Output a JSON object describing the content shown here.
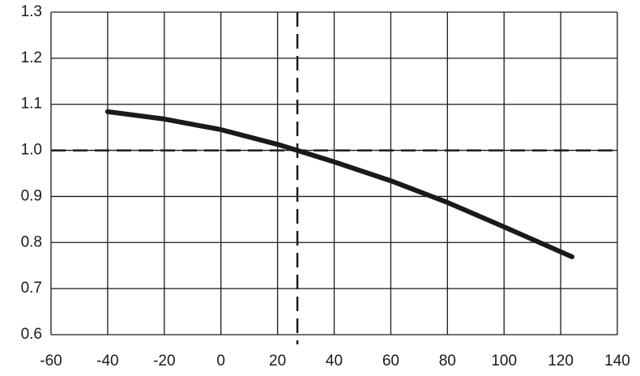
{
  "chart_data": {
    "type": "line",
    "x": [
      -40,
      -20,
      0,
      20,
      27,
      40,
      60,
      80,
      100,
      124
    ],
    "series": [
      {
        "color": "#1a1a1a",
        "values": [
          1.084,
          1.068,
          1.045,
          1.013,
          1.0,
          0.975,
          0.934,
          0.887,
          0.834,
          0.769
        ]
      }
    ],
    "xlim": [
      -60,
      140
    ],
    "xticks": [
      -60,
      -40,
      -20,
      0,
      20,
      40,
      60,
      80,
      100,
      120,
      140
    ],
    "ylim": [
      0.6,
      1.3
    ],
    "yticks": [
      0.6,
      0.7,
      0.8,
      0.9,
      {
        "value": 1,
        "label": "1.0"
      },
      1.1,
      1.2,
      1.3
    ],
    "grid": true,
    "hline": 1,
    "vline": 27
  }
}
